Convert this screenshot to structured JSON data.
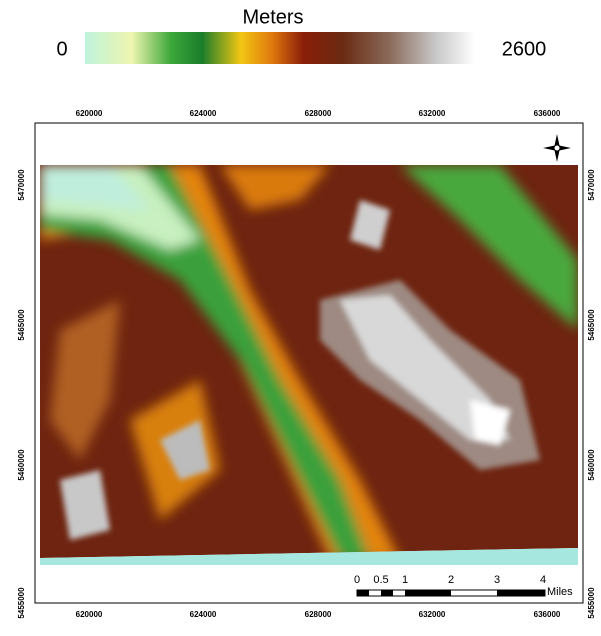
{
  "legend": {
    "title": "Meters",
    "min_label": "0",
    "max_label": "2600"
  },
  "axes": {
    "top": [
      "620000",
      "624000",
      "628000",
      "632000",
      "636000"
    ],
    "bottom": [
      "620000",
      "624000",
      "628000",
      "632000",
      "636000"
    ],
    "left": [
      "5470000",
      "5465000",
      "5460000",
      "5455000"
    ],
    "right": [
      "5470000",
      "5465000",
      "5460000",
      "5455000"
    ]
  },
  "scale_bar": {
    "labels": [
      "0",
      "0.5",
      "1",
      "2",
      "3",
      "4"
    ],
    "unit": "Miles"
  }
}
